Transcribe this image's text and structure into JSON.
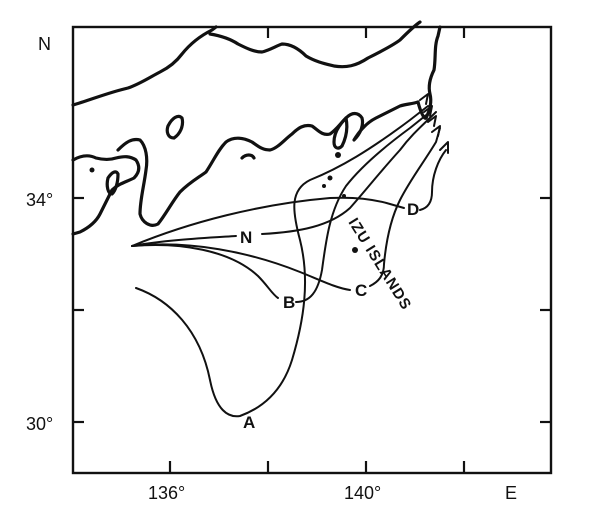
{
  "map": {
    "axis": {
      "north": "N",
      "east": "E",
      "lat_ticks": [
        "34°",
        "30°"
      ],
      "lon_ticks": [
        "136°",
        "140°"
      ]
    },
    "islands_label": "IZU ISLANDS",
    "path_labels": {
      "A": "A",
      "B": "B",
      "C": "C",
      "D": "D",
      "N": "N"
    },
    "colors": {
      "ink": "#111111",
      "background": "#ffffff"
    }
  }
}
